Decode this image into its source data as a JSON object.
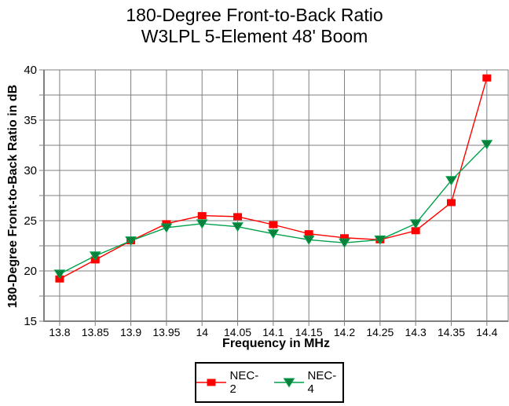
{
  "title": {
    "line1": "180-Degree Front-to-Back Ratio",
    "line2": "W3LPL 5-Element 48' Boom"
  },
  "chart_data": {
    "type": "line",
    "title": "180-Degree Front-to-Back Ratio",
    "subtitle": "W3LPL 5-Element 48' Boom",
    "xlabel": "Frequency in MHz",
    "ylabel": "180-Degree Front-to-Back Ratio in dB",
    "x": [
      13.8,
      13.85,
      13.9,
      13.95,
      14.0,
      14.05,
      14.1,
      14.15,
      14.2,
      14.25,
      14.3,
      14.35,
      14.4
    ],
    "x_tick_labels": [
      "13.8",
      "13.85",
      "13.9",
      "13.95",
      "14",
      "14.05",
      "14.1",
      "14.15",
      "14.2",
      "14.25",
      "14.3",
      "14.35",
      "14.4"
    ],
    "series": [
      {
        "name": "NEC-2",
        "color": "#ff0000",
        "marker": "square",
        "values": [
          19.2,
          21.1,
          23.0,
          24.7,
          25.5,
          25.4,
          24.6,
          23.7,
          23.3,
          23.1,
          24.0,
          26.8,
          39.2
        ]
      },
      {
        "name": "NEC-4",
        "color": "#00a04a",
        "marker": "triangle-down",
        "values": [
          19.7,
          21.5,
          23.0,
          24.3,
          24.7,
          24.4,
          23.7,
          23.1,
          22.8,
          23.1,
          24.7,
          29.0,
          32.6
        ]
      }
    ],
    "ylim": [
      15,
      40
    ],
    "xlim": [
      13.778,
      14.43
    ],
    "y_major_ticks": [
      15,
      20,
      25,
      30,
      35,
      40
    ],
    "y_minor_step": 2.5,
    "grid": true,
    "grid_color": "#808080",
    "legend_position": "bottom-center"
  }
}
